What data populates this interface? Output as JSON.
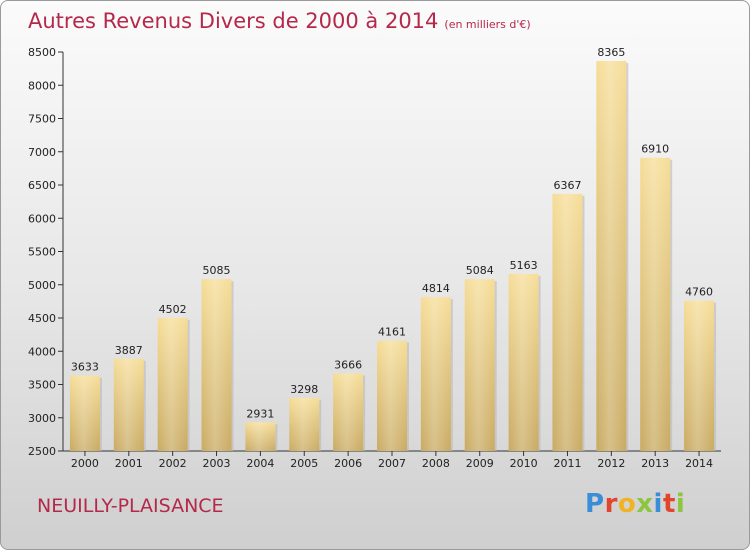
{
  "title": "Autres Revenus Divers de 2000 à 2014",
  "unit_label": "(en milliers d'€)",
  "commune": "NEUILLY-PLAISANCE",
  "logo": {
    "letters": [
      "P",
      "r",
      "o",
      "x",
      "i",
      "t",
      "i"
    ],
    "colors": [
      "#3a8ed8",
      "#e2452e",
      "#f0b323",
      "#8cc63f",
      "#3a8ed8",
      "#e2452e",
      "#8cc63f"
    ]
  },
  "chart_data": {
    "type": "bar",
    "title": "Autres Revenus Divers de 2000 à 2014",
    "categories": [
      "2000",
      "2001",
      "2002",
      "2003",
      "2004",
      "2005",
      "2006",
      "2007",
      "2008",
      "2009",
      "2010",
      "2011",
      "2012",
      "2013",
      "2014"
    ],
    "values": [
      3633,
      3887,
      4502,
      5085,
      2931,
      3298,
      3666,
      4161,
      4814,
      5084,
      5163,
      6367,
      8365,
      6910,
      4760
    ],
    "ylim": [
      2500,
      8500
    ],
    "yticks": [
      2500,
      3000,
      3500,
      4000,
      4500,
      5000,
      5500,
      6000,
      6500,
      7000,
      7500,
      8000,
      8500
    ],
    "xlabel": "",
    "ylabel": "",
    "grid": false,
    "bar_color": "#e8c97a"
  }
}
